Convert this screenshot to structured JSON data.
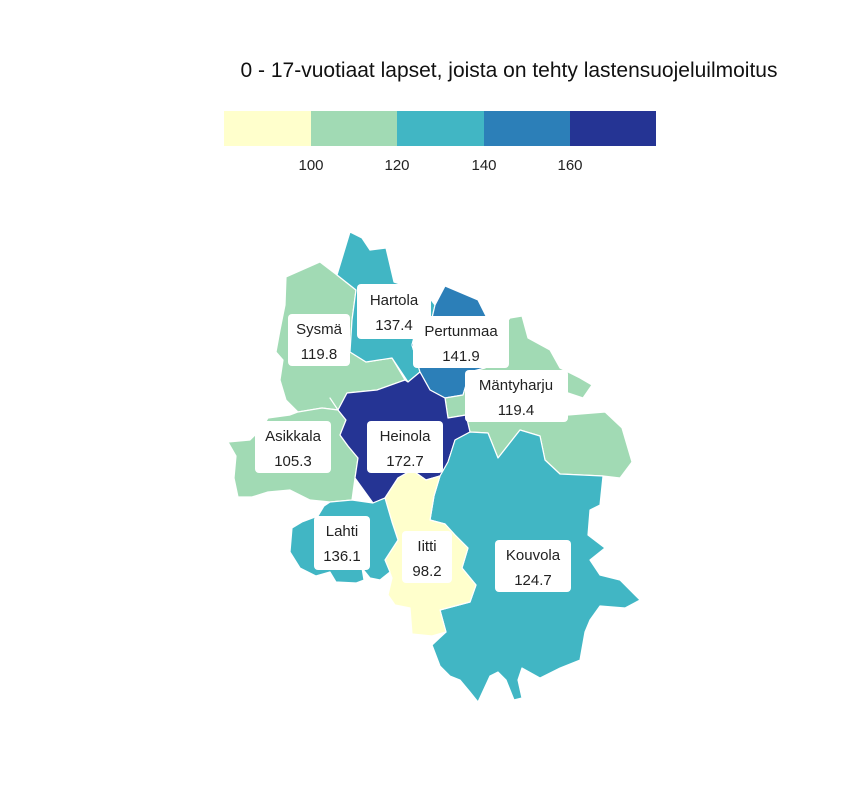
{
  "map_title": "0 - 17-vuotiaat lapset, joista on tehty lastensuojeluilmoitus",
  "legend": {
    "colors": [
      "#ffffcc",
      "#a1dab4",
      "#41b6c4",
      "#2c7fb8",
      "#253494"
    ],
    "ticks": [
      "100",
      "120",
      "140",
      "160"
    ]
  },
  "regions": [
    {
      "name": "Hartola",
      "value": "137.4",
      "color": "#41b6c4"
    },
    {
      "name": "Sysmä",
      "value": "119.8",
      "color": "#a1dab4"
    },
    {
      "name": "Pertunmaa",
      "value": "141.9",
      "color": "#2c7fb8"
    },
    {
      "name": "Mäntyharju",
      "value": "119.4",
      "color": "#a1dab4"
    },
    {
      "name": "Asikkala",
      "value": "105.3",
      "color": "#a1dab4"
    },
    {
      "name": "Heinola",
      "value": "172.7",
      "color": "#253494"
    },
    {
      "name": "Lahti",
      "value": "136.1",
      "color": "#41b6c4"
    },
    {
      "name": "Iitti",
      "value": "98.2",
      "color": "#ffffcc"
    },
    {
      "name": "Kouvola",
      "value": "124.7",
      "color": "#41b6c4"
    }
  ]
}
